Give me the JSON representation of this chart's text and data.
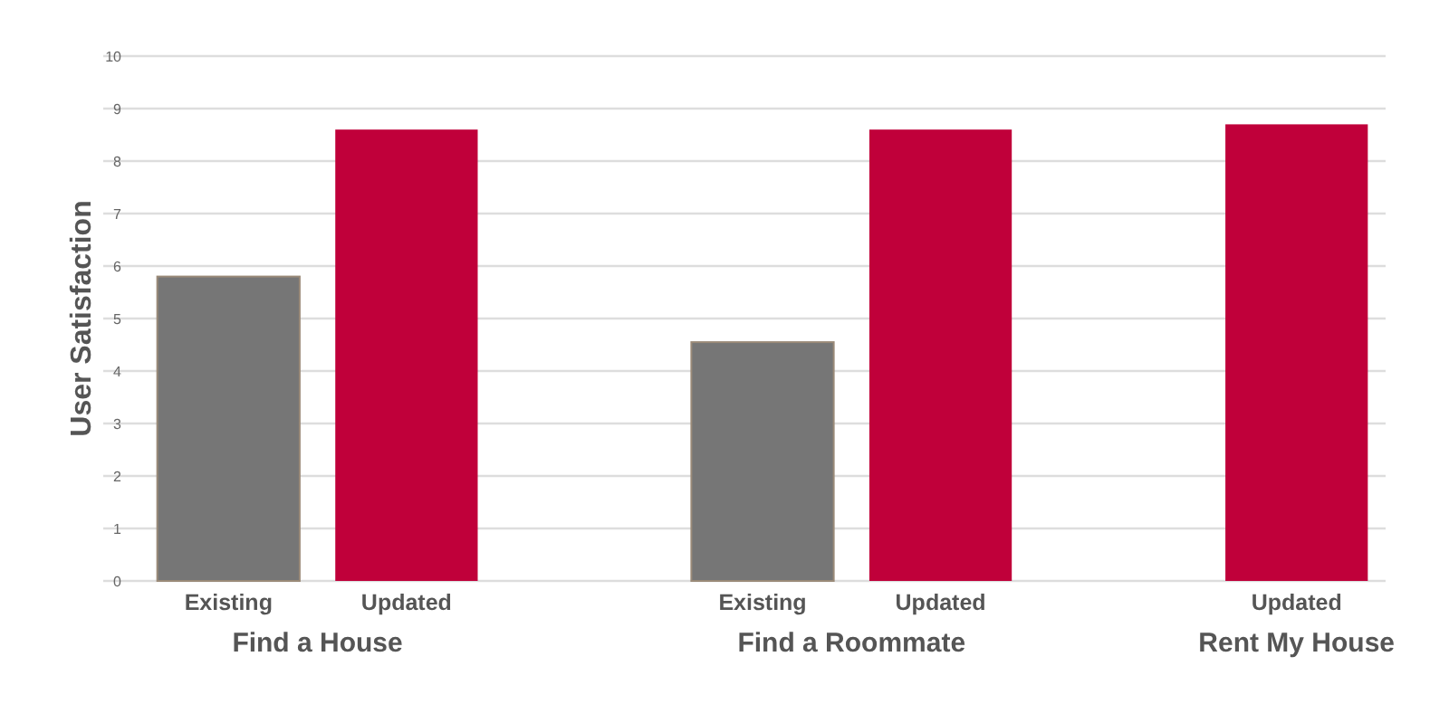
{
  "chart_data": {
    "type": "bar",
    "ylabel": "User Satisfaction",
    "categories": [
      "Find a House",
      "Find a Roommate",
      "Rent My House"
    ],
    "series": [
      {
        "name": "Existing",
        "color": "#767676",
        "values": [
          5.8,
          4.55,
          null
        ]
      },
      {
        "name": "Updated",
        "color": "#c0003a",
        "values": [
          8.6,
          8.6,
          8.7
        ]
      }
    ],
    "ylim": [
      0,
      10
    ],
    "yticks": [
      0,
      1,
      2,
      3,
      4,
      5,
      6,
      7,
      8,
      9,
      10
    ],
    "grid": "y",
    "legend": false
  }
}
